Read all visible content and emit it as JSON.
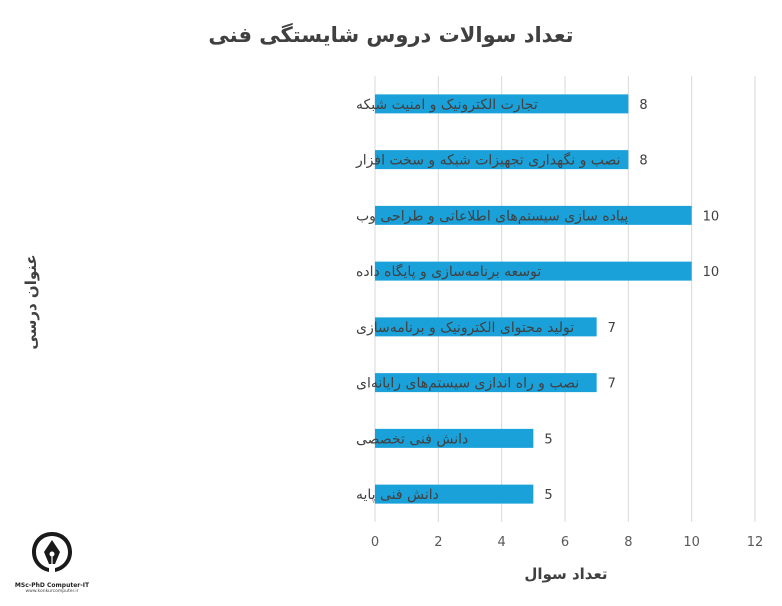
{
  "chart_data": {
    "type": "bar",
    "orientation": "horizontal",
    "title": "تعداد سوالات دروس شایستگی فنی",
    "xlabel": "تعداد سوال",
    "ylabel": "عنوان درسی",
    "xlim": [
      0,
      12
    ],
    "xticks": [
      0,
      2,
      4,
      6,
      8,
      10,
      12
    ],
    "grid": "vertical",
    "bar_color": "#1ba1d9",
    "categories": [
      "تجارت الکترونیک و امنیت شبکه",
      "نصب و نگهداری تجهیزات شبکه و سخت افزار",
      "پیاده سازی سیستم‌های اطلاعاتی و طراحی وب",
      "توسعه برنامه‌سازی و پایگاه داده",
      "تولید محتوای الکترونیک و برنامه‌سازی",
      "نصب و راه اندازی سیستم‌های رایانه‌ای",
      "دانش فنی تخصصی",
      "دانش فنی پایه"
    ],
    "values": [
      8,
      8,
      10,
      10,
      7,
      7,
      5,
      5
    ]
  },
  "logo": {
    "line1": "MSc-PhD Computer-IT",
    "line2": "www.konkurcomputer.ir"
  }
}
